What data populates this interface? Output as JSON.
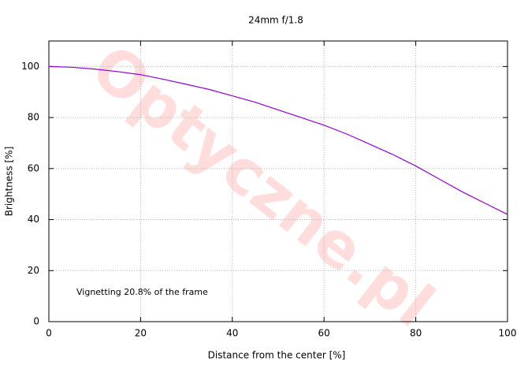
{
  "chart_data": {
    "type": "line",
    "title": "24mm f/1.8",
    "xlabel": "Distance from the center [%]",
    "ylabel": "Brightness [%]",
    "annotation": "Vignetting 20.8% of the frame",
    "watermark": "Optyczne.pl",
    "x": [
      0,
      5,
      10,
      15,
      20,
      25,
      30,
      35,
      40,
      45,
      50,
      55,
      60,
      65,
      70,
      75,
      80,
      85,
      90,
      95,
      100
    ],
    "series": [
      {
        "name": "Brightness",
        "color": "#9400d3",
        "values": [
          100,
          99.7,
          99,
          98,
          96.8,
          95,
          93,
          91,
          88.5,
          86,
          83,
          80,
          77,
          73.5,
          69.5,
          65.5,
          61,
          56,
          51,
          46.5,
          42
        ]
      }
    ],
    "xlim": [
      0,
      100
    ],
    "xticks": [
      0,
      20,
      40,
      60,
      80,
      100
    ],
    "ylim": [
      0,
      110
    ],
    "yticks": [
      0,
      20,
      40,
      60,
      80,
      100
    ],
    "grid": true
  }
}
